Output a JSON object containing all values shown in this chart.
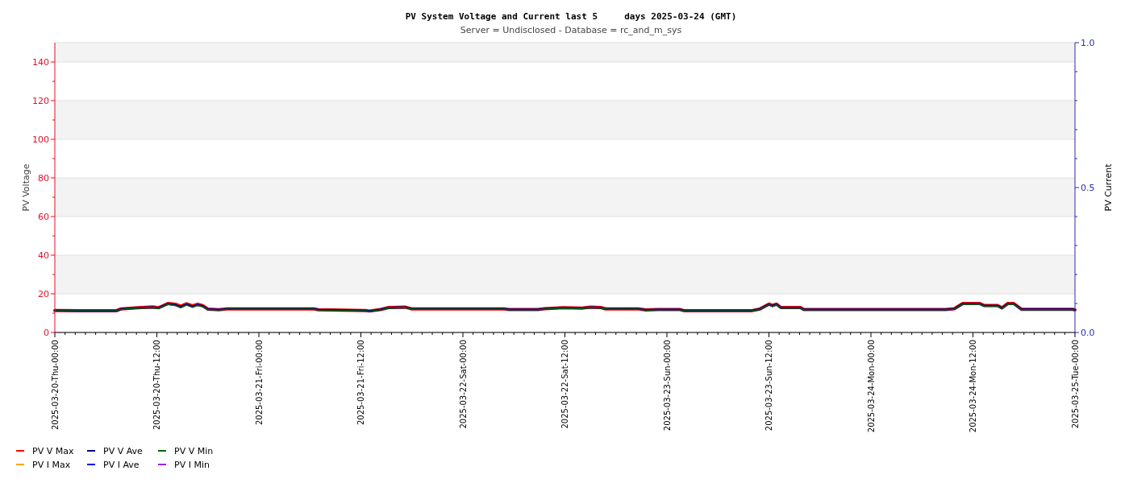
{
  "chart_data": {
    "type": "line",
    "title": "PV System Voltage and Current last 5     days 2025-03-24 (GMT)",
    "subtitle": "Server = Undisclosed - Database = rc_and_m_sys",
    "ylabel": "PV Voltage",
    "y2label": "PV Current",
    "x": [
      "2025-03-20T00:00",
      "2025-03-20T03:00",
      "2025-03-20T07:12",
      "2025-03-20T07:48",
      "2025-03-20T09:48",
      "2025-03-20T11:30",
      "2025-03-20T12:12",
      "2025-03-20T13:18",
      "2025-03-20T14:12",
      "2025-03-20T14:48",
      "2025-03-20T15:30",
      "2025-03-20T16:12",
      "2025-03-20T16:48",
      "2025-03-20T17:24",
      "2025-03-20T18:00",
      "2025-03-20T19:18",
      "2025-03-20T20:12",
      "2025-03-21T06:30",
      "2025-03-21T07:00",
      "2025-03-21T12:30",
      "2025-03-21T13:00",
      "2025-03-21T14:18",
      "2025-03-21T15:18",
      "2025-03-21T17:12",
      "2025-03-21T18:00",
      "2025-03-22T04:54",
      "2025-03-22T05:24",
      "2025-03-22T08:48",
      "2025-03-22T09:36",
      "2025-03-22T11:48",
      "2025-03-22T14:00",
      "2025-03-22T15:00",
      "2025-03-22T16:12",
      "2025-03-22T16:48",
      "2025-03-22T20:42",
      "2025-03-22T21:30",
      "2025-03-22T22:54",
      "2025-03-23T01:30",
      "2025-03-23T02:00",
      "2025-03-23T10:00",
      "2025-03-23T10:54",
      "2025-03-23T12:00",
      "2025-03-23T12:24",
      "2025-03-23T12:54",
      "2025-03-23T13:24",
      "2025-03-23T15:42",
      "2025-03-23T16:06",
      "2025-03-24T08:48",
      "2025-03-24T09:48",
      "2025-03-24T10:48",
      "2025-03-24T12:48",
      "2025-03-24T13:18",
      "2025-03-24T14:54",
      "2025-03-24T15:24",
      "2025-03-24T16:06",
      "2025-03-24T16:48",
      "2025-03-24T17:42",
      "2025-03-24T23:42",
      "2025-03-25T00:00"
    ],
    "series": [
      {
        "name": "PV V Max",
        "color": "#ff0000",
        "values": [
          11.4,
          11.3,
          11.2,
          12.2,
          12.8,
          13.2,
          12.8,
          15.0,
          14.6,
          13.6,
          14.8,
          13.8,
          14.6,
          13.9,
          12.1,
          11.8,
          12.2,
          12.2,
          11.8,
          11.4,
          11.1,
          11.9,
          12.9,
          13.1,
          12.2,
          12.2,
          11.9,
          11.9,
          12.3,
          12.8,
          12.6,
          13.1,
          12.9,
          12.2,
          12.2,
          11.7,
          11.9,
          11.9,
          11.3,
          11.3,
          12.1,
          14.7,
          14.0,
          14.7,
          12.9,
          12.9,
          11.9,
          11.9,
          12.3,
          15.0,
          15.0,
          14.0,
          14.0,
          12.8,
          15.0,
          15.0,
          12.0,
          12.0,
          11.7
        ]
      },
      {
        "name": "PV V Ave",
        "color": "#000080",
        "values": [
          11.4,
          11.2,
          11.2,
          12.1,
          12.7,
          13.0,
          12.6,
          14.8,
          14.2,
          13.2,
          14.5,
          13.4,
          14.3,
          13.6,
          12.0,
          11.7,
          12.2,
          12.2,
          11.7,
          11.3,
          11.0,
          11.8,
          12.8,
          13.0,
          12.2,
          12.2,
          11.8,
          11.8,
          12.2,
          12.7,
          12.5,
          13.0,
          12.8,
          12.2,
          12.2,
          11.6,
          11.8,
          11.8,
          11.3,
          11.3,
          12.0,
          14.5,
          13.7,
          14.5,
          12.8,
          12.8,
          11.8,
          11.8,
          12.2,
          14.8,
          14.8,
          13.8,
          13.8,
          12.5,
          14.8,
          14.8,
          11.9,
          11.9,
          11.6
        ]
      },
      {
        "name": "PV V Min",
        "color": "#006400",
        "values": [
          11.3,
          11.2,
          11.2,
          12.0,
          12.6,
          12.9,
          12.4,
          14.6,
          13.9,
          12.8,
          14.2,
          13.0,
          14.0,
          13.3,
          11.9,
          11.6,
          12.1,
          12.1,
          11.6,
          11.2,
          10.9,
          11.7,
          12.7,
          12.9,
          12.1,
          12.1,
          11.7,
          11.7,
          12.1,
          12.6,
          12.4,
          12.9,
          12.7,
          12.1,
          12.1,
          11.5,
          11.7,
          11.7,
          11.2,
          11.2,
          11.9,
          14.3,
          13.4,
          14.3,
          12.7,
          12.7,
          11.7,
          11.7,
          12.1,
          14.6,
          14.6,
          13.6,
          13.6,
          12.2,
          14.6,
          14.6,
          11.8,
          11.8,
          11.5
        ]
      },
      {
        "name": "PV I Max",
        "color": "#ffa500",
        "values": [
          null,
          null,
          null,
          null,
          null,
          null,
          null,
          null,
          null,
          null,
          null,
          null,
          null,
          null,
          null,
          null,
          null,
          null,
          null,
          null,
          null,
          null,
          null,
          null,
          null,
          null,
          null,
          null,
          null,
          null,
          null,
          null,
          null,
          null,
          null,
          null,
          null,
          null,
          null,
          null,
          null,
          null,
          null,
          null,
          null,
          null,
          null,
          null,
          null,
          null,
          null,
          null,
          null,
          null,
          null,
          null,
          null,
          null,
          null
        ]
      },
      {
        "name": "PV I Ave",
        "color": "#0000ff",
        "values": [
          null,
          null,
          null,
          null,
          null,
          null,
          null,
          null,
          null,
          null,
          null,
          null,
          null,
          null,
          null,
          null,
          null,
          null,
          null,
          null,
          null,
          null,
          null,
          null,
          null,
          null,
          null,
          null,
          null,
          null,
          null,
          null,
          null,
          null,
          null,
          null,
          null,
          null,
          null,
          null,
          null,
          null,
          null,
          null,
          null,
          null,
          null,
          null,
          null,
          null,
          null,
          null,
          null,
          null,
          null,
          null,
          null,
          null,
          null
        ]
      },
      {
        "name": "PV I Min",
        "color": "#a020f0",
        "values": [
          null,
          null,
          null,
          null,
          null,
          null,
          null,
          null,
          null,
          null,
          null,
          null,
          null,
          null,
          null,
          null,
          null,
          null,
          null,
          null,
          null,
          null,
          null,
          null,
          null,
          null,
          null,
          null,
          null,
          null,
          null,
          null,
          null,
          null,
          null,
          null,
          null,
          null,
          null,
          null,
          null,
          null,
          null,
          null,
          null,
          null,
          null,
          null,
          null,
          null,
          null,
          null,
          null,
          null,
          null,
          null,
          null,
          null,
          null
        ]
      }
    ],
    "xlim": [
      "2025-03-20T00:00",
      "2025-03-25T00:00"
    ],
    "xticks": [
      {
        "value": "2025-03-20T00:00",
        "label": "2025-03-20-Thu-00:00"
      },
      {
        "value": "2025-03-20T12:00",
        "label": "2025-03-20-Thu-12:00"
      },
      {
        "value": "2025-03-21T00:00",
        "label": "2025-03-21-Fri-00:00"
      },
      {
        "value": "2025-03-21T12:00",
        "label": "2025-03-21-Fri-12:00"
      },
      {
        "value": "2025-03-22T00:00",
        "label": "2025-03-22-Sat-00:00"
      },
      {
        "value": "2025-03-22T12:00",
        "label": "2025-03-22-Sat-12:00"
      },
      {
        "value": "2025-03-23T00:00",
        "label": "2025-03-23-Sun-00:00"
      },
      {
        "value": "2025-03-23T12:00",
        "label": "2025-03-23-Sun-12:00"
      },
      {
        "value": "2025-03-24T00:00",
        "label": "2025-03-24-Mon-00:00"
      },
      {
        "value": "2025-03-24T12:00",
        "label": "2025-03-24-Mon-12:00"
      },
      {
        "value": "2025-03-25T00:00",
        "label": "2025-03-25-Tue-00:00"
      },
      {
        "value": "2025-03-20T01:12",
        "label": null
      },
      {
        "value": "2025-03-20T02:24",
        "label": null
      },
      {
        "value": "2025-03-20T03:36",
        "label": null
      },
      {
        "value": "2025-03-20T04:48",
        "label": null
      },
      {
        "value": "2025-03-20T06:00",
        "label": null
      },
      {
        "value": "2025-03-20T07:12",
        "label": null
      },
      {
        "value": "2025-03-20T08:24",
        "label": null
      },
      {
        "value": "2025-03-20T09:36",
        "label": null
      },
      {
        "value": "2025-03-20T10:48",
        "label": null
      },
      {
        "value": "2025-03-20T13:12",
        "label": null
      },
      {
        "value": "2025-03-20T14:24",
        "label": null
      },
      {
        "value": "2025-03-20T15:36",
        "label": null
      },
      {
        "value": "2025-03-20T16:48",
        "label": null
      },
      {
        "value": "2025-03-20T18:00",
        "label": null
      },
      {
        "value": "2025-03-20T19:12",
        "label": null
      },
      {
        "value": "2025-03-20T20:24",
        "label": null
      },
      {
        "value": "2025-03-20T21:36",
        "label": null
      },
      {
        "value": "2025-03-20T22:48",
        "label": null
      },
      {
        "value": "2025-03-21T01:12",
        "label": null
      },
      {
        "value": "2025-03-21T02:24",
        "label": null
      },
      {
        "value": "2025-03-21T03:36",
        "label": null
      },
      {
        "value": "2025-03-21T04:48",
        "label": null
      },
      {
        "value": "2025-03-21T06:00",
        "label": null
      },
      {
        "value": "2025-03-21T07:12",
        "label": null
      },
      {
        "value": "2025-03-21T08:24",
        "label": null
      },
      {
        "value": "2025-03-21T09:36",
        "label": null
      },
      {
        "value": "2025-03-21T10:48",
        "label": null
      },
      {
        "value": "2025-03-21T13:12",
        "label": null
      },
      {
        "value": "2025-03-21T14:24",
        "label": null
      },
      {
        "value": "2025-03-21T15:36",
        "label": null
      },
      {
        "value": "2025-03-21T16:48",
        "label": null
      },
      {
        "value": "2025-03-21T18:00",
        "label": null
      },
      {
        "value": "2025-03-21T19:12",
        "label": null
      },
      {
        "value": "2025-03-21T20:24",
        "label": null
      },
      {
        "value": "2025-03-21T21:36",
        "label": null
      },
      {
        "value": "2025-03-21T22:48",
        "label": null
      },
      {
        "value": "2025-03-22T01:12",
        "label": null
      },
      {
        "value": "2025-03-22T02:24",
        "label": null
      },
      {
        "value": "2025-03-22T03:36",
        "label": null
      },
      {
        "value": "2025-03-22T04:48",
        "label": null
      },
      {
        "value": "2025-03-22T06:00",
        "label": null
      },
      {
        "value": "2025-03-22T07:12",
        "label": null
      },
      {
        "value": "2025-03-22T08:24",
        "label": null
      },
      {
        "value": "2025-03-22T09:36",
        "label": null
      },
      {
        "value": "2025-03-22T10:48",
        "label": null
      },
      {
        "value": "2025-03-22T13:12",
        "label": null
      },
      {
        "value": "2025-03-22T14:24",
        "label": null
      },
      {
        "value": "2025-03-22T15:36",
        "label": null
      },
      {
        "value": "2025-03-22T16:48",
        "label": null
      },
      {
        "value": "2025-03-22T18:00",
        "label": null
      },
      {
        "value": "2025-03-22T19:12",
        "label": null
      },
      {
        "value": "2025-03-22T20:24",
        "label": null
      },
      {
        "value": "2025-03-22T21:36",
        "label": null
      },
      {
        "value": "2025-03-22T22:48",
        "label": null
      },
      {
        "value": "2025-03-23T01:12",
        "label": null
      },
      {
        "value": "2025-03-23T02:24",
        "label": null
      },
      {
        "value": "2025-03-23T03:36",
        "label": null
      },
      {
        "value": "2025-03-23T04:48",
        "label": null
      },
      {
        "value": "2025-03-23T06:00",
        "label": null
      },
      {
        "value": "2025-03-23T07:12",
        "label": null
      },
      {
        "value": "2025-03-23T08:24",
        "label": null
      },
      {
        "value": "2025-03-23T09:36",
        "label": null
      },
      {
        "value": "2025-03-23T10:48",
        "label": null
      },
      {
        "value": "2025-03-23T13:12",
        "label": null
      },
      {
        "value": "2025-03-23T14:24",
        "label": null
      },
      {
        "value": "2025-03-23T15:36",
        "label": null
      },
      {
        "value": "2025-03-23T16:48",
        "label": null
      },
      {
        "value": "2025-03-23T18:00",
        "label": null
      },
      {
        "value": "2025-03-23T19:12",
        "label": null
      },
      {
        "value": "2025-03-23T20:24",
        "label": null
      },
      {
        "value": "2025-03-23T21:36",
        "label": null
      },
      {
        "value": "2025-03-23T22:48",
        "label": null
      },
      {
        "value": "2025-03-24T01:12",
        "label": null
      },
      {
        "value": "2025-03-24T02:24",
        "label": null
      },
      {
        "value": "2025-03-24T03:36",
        "label": null
      },
      {
        "value": "2025-03-24T04:48",
        "label": null
      },
      {
        "value": "2025-03-24T06:00",
        "label": null
      },
      {
        "value": "2025-03-24T07:12",
        "label": null
      },
      {
        "value": "2025-03-24T08:24",
        "label": null
      },
      {
        "value": "2025-03-24T09:36",
        "label": null
      },
      {
        "value": "2025-03-24T10:48",
        "label": null
      },
      {
        "value": "2025-03-24T13:12",
        "label": null
      },
      {
        "value": "2025-03-24T14:24",
        "label": null
      },
      {
        "value": "2025-03-24T15:36",
        "label": null
      },
      {
        "value": "2025-03-24T16:48",
        "label": null
      },
      {
        "value": "2025-03-24T18:00",
        "label": null
      },
      {
        "value": "2025-03-24T19:12",
        "label": null
      },
      {
        "value": "2025-03-24T20:24",
        "label": null
      },
      {
        "value": "2025-03-24T21:36",
        "label": null
      },
      {
        "value": "2025-03-24T22:48",
        "label": null
      }
    ],
    "ylim": [
      0,
      150
    ],
    "yticks": [
      0,
      20,
      40,
      60,
      80,
      100,
      120,
      140,
      {
        "value": 10,
        "label": null
      },
      {
        "value": 30,
        "label": null
      },
      {
        "value": 50,
        "label": null
      },
      {
        "value": 70,
        "label": null
      },
      {
        "value": 90,
        "label": null
      },
      {
        "value": 110,
        "label": null
      },
      {
        "value": 130,
        "label": null
      }
    ],
    "y2lim": [
      0,
      1
    ],
    "y2ticks": [
      {
        "value": 0,
        "label": "0.0"
      },
      {
        "value": 0.5,
        "label": "0.5"
      },
      {
        "value": 1,
        "label": "1.0"
      },
      {
        "value": 0.1,
        "label": null
      },
      {
        "value": 0.2,
        "label": null
      },
      {
        "value": 0.3,
        "label": null
      },
      {
        "value": 0.4,
        "label": null
      },
      {
        "value": 0.6,
        "label": null
      },
      {
        "value": 0.7,
        "label": null
      },
      {
        "value": 0.8,
        "label": null
      },
      {
        "value": 0.9,
        "label": null
      }
    ],
    "grid": "y",
    "legend": "bottom left",
    "marker": "none",
    "line_style": "solid"
  }
}
